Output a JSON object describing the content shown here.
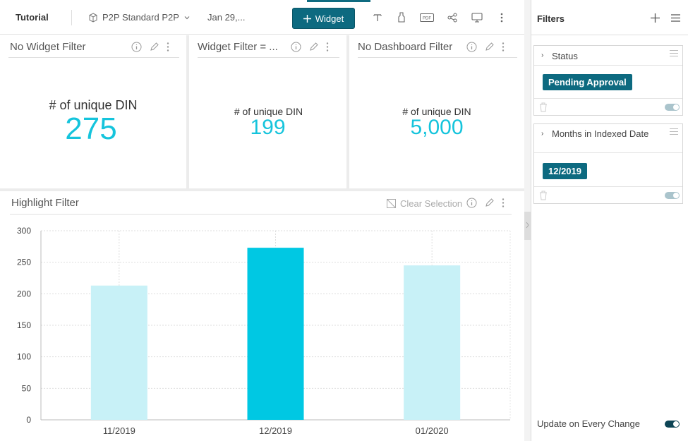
{
  "toolbar": {
    "app_title": "Tutorial",
    "datasource": "P2P Standard P2P",
    "date": "Jan 29,...",
    "add_widget_label": "Widget"
  },
  "kpis": [
    {
      "title": "No Widget Filter",
      "label": "# of unique DIN",
      "value": "275"
    },
    {
      "title": "Widget Filter = ...",
      "label": "# of unique DIN",
      "value": "199"
    },
    {
      "title": "No Dashboard Filter",
      "label": "# of unique DIN",
      "value": "5,000"
    }
  ],
  "chart_panel": {
    "title": "Highlight Filter",
    "clear_selection": "Clear Selection"
  },
  "chart_data": {
    "type": "bar",
    "categories": [
      "11/2019",
      "12/2019",
      "01/2020"
    ],
    "values": [
      213,
      273,
      245
    ],
    "highlighted": "12/2019",
    "yticks": [
      0,
      50,
      100,
      150,
      200,
      250,
      300
    ],
    "ylim": [
      0,
      300
    ],
    "grid": true,
    "colors": {
      "highlight": "#00c8e3",
      "normal": "#c8f1f7"
    }
  },
  "filters_panel": {
    "title": "Filters",
    "filters": [
      {
        "name": "Status",
        "chip": "Pending Approval"
      },
      {
        "name": "Months in Indexed Date",
        "chip": "12/2019"
      }
    ],
    "update_label": "Update on Every Change"
  },
  "colors": {
    "accent": "#0d6a80",
    "kpi_value": "#15c4dc"
  }
}
